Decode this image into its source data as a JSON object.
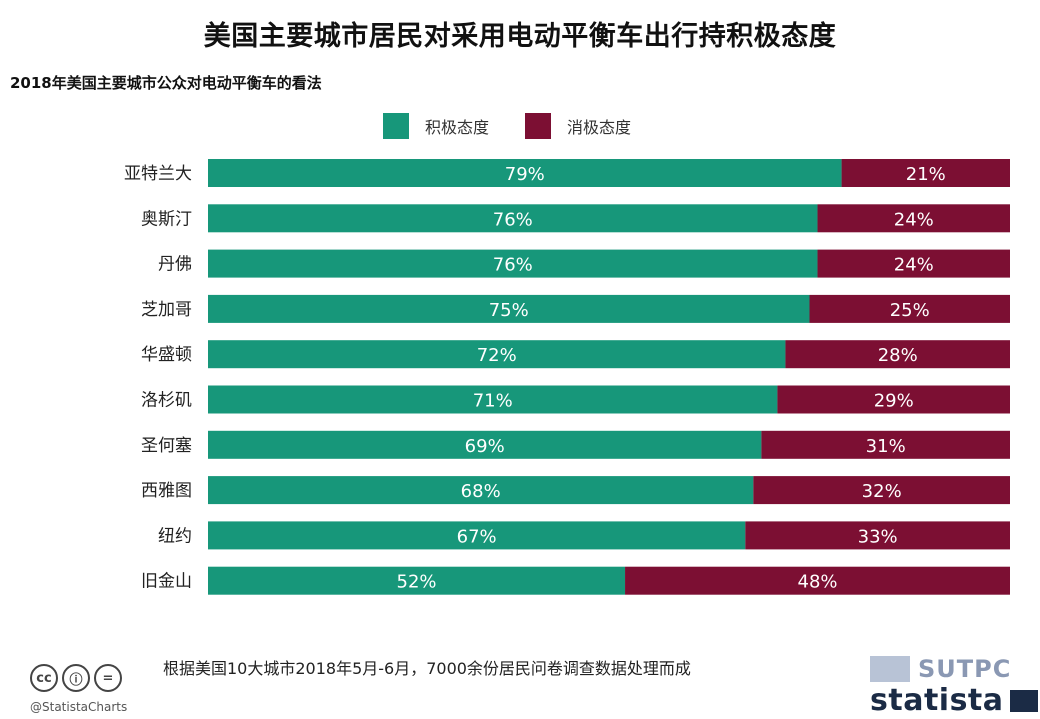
{
  "title": "美国主要城市居民对采用电动平衡车出行持积极态度",
  "subtitle": "2018年美国主要城市公众对电动平衡车的看法",
  "legend": {
    "positive": "积极态度",
    "negative": "消极态度"
  },
  "colors": {
    "positive": "#17977a",
    "negative": "#7c0f33"
  },
  "chart_data": {
    "type": "bar",
    "orientation": "horizontal",
    "stacked": true,
    "categories": [
      "亚特兰大",
      "奥斯汀",
      "丹佛",
      "芝加哥",
      "华盛顿",
      "洛杉矶",
      "圣何塞",
      "西雅图",
      "纽约",
      "旧金山"
    ],
    "series": [
      {
        "name": "积极态度",
        "values": [
          79,
          76,
          76,
          75,
          72,
          71,
          69,
          68,
          67,
          52
        ]
      },
      {
        "name": "消极态度",
        "values": [
          21,
          24,
          24,
          25,
          28,
          29,
          31,
          32,
          33,
          48
        ]
      }
    ],
    "value_suffix": "%",
    "xlim": [
      0,
      100
    ],
    "grid": false,
    "legend_position": "top-center"
  },
  "footer": {
    "note": "根据美国10大城市2018年5月-6月，7000余份居民问卷调查数据处理而成",
    "handle": "@StatistaCharts",
    "cc_icons": [
      "cc",
      "ⓘ",
      "="
    ],
    "logo_sutpc": "SUTPC",
    "logo_statista": "statista"
  }
}
